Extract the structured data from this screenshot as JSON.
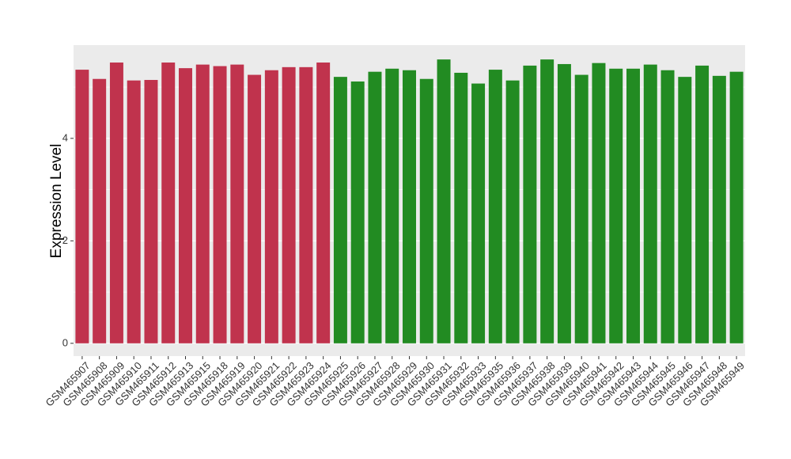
{
  "chart_data": {
    "type": "bar",
    "y_label": "Expression Level",
    "categories": [
      "GSM465907",
      "GSM465908",
      "GSM465909",
      "GSM465910",
      "GSM465911",
      "GSM465912",
      "GSM465913",
      "GSM465915",
      "GSM465918",
      "GSM465919",
      "GSM465920",
      "GSM465921",
      "GSM465922",
      "GSM465923",
      "GSM465924",
      "GSM465925",
      "GSM465926",
      "GSM465927",
      "GSM465928",
      "GSM465929",
      "GSM465930",
      "GSM465931",
      "GSM465932",
      "GSM465933",
      "GSM465935",
      "GSM465936",
      "GSM465937",
      "GSM465938",
      "GSM465939",
      "GSM465940",
      "GSM465941",
      "GSM465942",
      "GSM465943",
      "GSM465944",
      "GSM465945",
      "GSM465946",
      "GSM465947",
      "GSM465948",
      "GSM465949"
    ],
    "values": [
      5.34,
      5.16,
      5.48,
      5.13,
      5.14,
      5.48,
      5.37,
      5.44,
      5.41,
      5.44,
      5.24,
      5.33,
      5.39,
      5.39,
      5.48,
      5.2,
      5.11,
      5.3,
      5.36,
      5.33,
      5.16,
      5.54,
      5.28,
      5.07,
      5.34,
      5.13,
      5.42,
      5.54,
      5.45,
      5.24,
      5.47,
      5.36,
      5.36,
      5.44,
      5.33,
      5.2,
      5.42,
      5.22,
      5.3
    ],
    "colors": [
      "#c0334d",
      "#c0334d",
      "#c0334d",
      "#c0334d",
      "#c0334d",
      "#c0334d",
      "#c0334d",
      "#c0334d",
      "#c0334d",
      "#c0334d",
      "#c0334d",
      "#c0334d",
      "#c0334d",
      "#c0334d",
      "#c0334d",
      "#228b22",
      "#228b22",
      "#228b22",
      "#228b22",
      "#228b22",
      "#228b22",
      "#228b22",
      "#228b22",
      "#228b22",
      "#228b22",
      "#228b22",
      "#228b22",
      "#228b22",
      "#228b22",
      "#228b22",
      "#228b22",
      "#228b22",
      "#228b22",
      "#228b22",
      "#228b22",
      "#228b22",
      "#228b22",
      "#228b22",
      "#228b22"
    ],
    "ylim": [
      -0.25,
      5.82
    ],
    "yticks": [
      0,
      2,
      4
    ],
    "minor_yticks": [
      1,
      3,
      5
    ],
    "grid": true
  }
}
